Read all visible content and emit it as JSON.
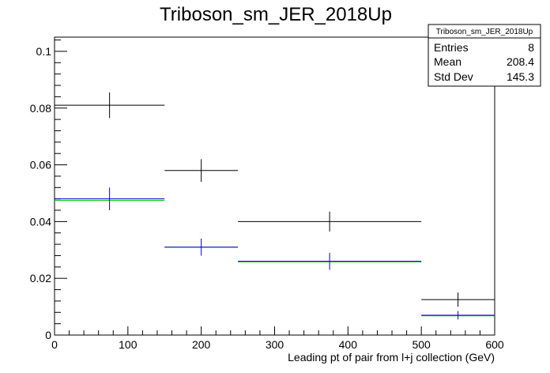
{
  "chart_data": {
    "type": "scatter",
    "title": "Triboson_sm_JER_2018Up",
    "xlabel": "Leading pt of pair from l+j collection (GeV)",
    "ylabel": "",
    "xlim": [
      0,
      600
    ],
    "ylim": [
      0,
      0.105
    ],
    "x_ticks": [
      0,
      100,
      200,
      300,
      400,
      500,
      600
    ],
    "x_tick_labels": [
      "0",
      "100",
      "200",
      "300",
      "400",
      "500",
      "600"
    ],
    "y_ticks": [
      0,
      0.02,
      0.04,
      0.06,
      0.08,
      0.1
    ],
    "y_tick_labels": [
      "0",
      "0.02",
      "0.04",
      "0.06",
      "0.08",
      "0.1"
    ],
    "grid": false,
    "series": [
      {
        "color": "#000000",
        "x_low": [
          0,
          150,
          250,
          500
        ],
        "x_high": [
          150,
          250,
          500,
          600
        ],
        "x": [
          75,
          200,
          375,
          550
        ],
        "y": [
          0.081,
          0.058,
          0.04,
          0.0125
        ],
        "y_err": [
          0.0045,
          0.004,
          0.0035,
          0.0025
        ]
      },
      {
        "color": "#00cc00",
        "x_low": [
          0,
          150,
          250,
          500
        ],
        "x_high": [
          150,
          250,
          500,
          600
        ],
        "x": [
          75,
          200,
          375,
          550
        ],
        "y": [
          0.0475,
          0.031,
          0.0258,
          0.0068
        ],
        "y_err": [
          0,
          0,
          0,
          0
        ]
      },
      {
        "color": "#0000cc",
        "x_low": [
          0,
          150,
          250,
          500
        ],
        "x_high": [
          150,
          250,
          500,
          600
        ],
        "x": [
          75,
          200,
          375,
          550
        ],
        "y": [
          0.048,
          0.031,
          0.026,
          0.007
        ],
        "y_err": [
          0.004,
          0.003,
          0.003,
          0.0015
        ]
      }
    ],
    "stats_box": {
      "title": "Triboson_sm_JER_2018Up",
      "rows": [
        {
          "label": "Entries",
          "value": "8"
        },
        {
          "label": "Mean",
          "value": "208.4"
        },
        {
          "label": "Std Dev",
          "value": "145.3"
        }
      ],
      "placement": "top-right"
    }
  }
}
